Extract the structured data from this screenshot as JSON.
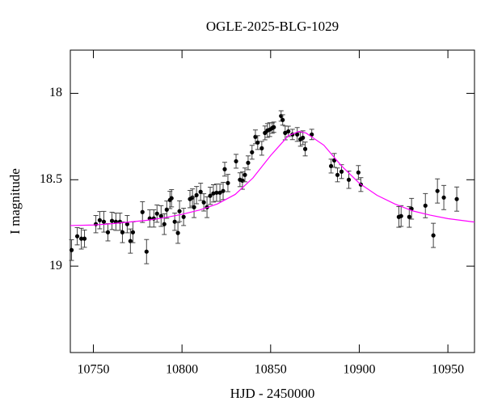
{
  "chart_data": {
    "type": "scatter",
    "title": "OGLE-2025-BLG-1029",
    "xlabel": "HJD - 2450000",
    "ylabel": "I magnitude",
    "xlim": [
      10737,
      10965
    ],
    "ylim": [
      19.5,
      17.75
    ],
    "xticks": [
      10750,
      10800,
      10850,
      10900,
      10950
    ],
    "yticks": [
      18,
      18.5,
      19
    ],
    "series": [
      {
        "type": "scatter",
        "color": "#000000",
        "x": [
          10737.7,
          10740.9,
          10743.2,
          10745,
          10751.4,
          10753.6,
          10755.9,
          10758.2,
          10760.5,
          10762.7,
          10765,
          10766.4,
          10769.1,
          10770.9,
          10772.3,
          10777.7,
          10780,
          10781.8,
          10784.1,
          10785.9,
          10788.2,
          10790,
          10791.4,
          10793.2,
          10794.1,
          10795.9,
          10797.7,
          10798.6,
          10800.9,
          10804.5,
          10805.9,
          10806.8,
          10808.2,
          10810.5,
          10812.3,
          10814.1,
          10815.9,
          10817.7,
          10819.5,
          10821.4,
          10823.2,
          10824.1,
          10825.9,
          10830.5,
          10832.7,
          10834.1,
          10835.5,
          10837.3,
          10839.5,
          10841.4,
          10842.7,
          10845,
          10846.8,
          10848.2,
          10849.5,
          10850.9,
          10851.8,
          10855.9,
          10856.8,
          10858.2,
          10860,
          10862.3,
          10865,
          10866.8,
          10868.2,
          10869.5,
          10873.2,
          10884.1,
          10885.9,
          10887.7,
          10890,
          10894.1,
          10899.5,
          10900.9,
          10922.3,
          10923.6,
          10928.2,
          10929.5,
          10937.3,
          10941.8,
          10944.1,
          10947.7,
          10955
        ],
        "values": [
          18.907,
          18.827,
          18.841,
          18.841,
          18.757,
          18.734,
          18.743,
          18.804,
          18.738,
          18.743,
          18.743,
          18.804,
          18.757,
          18.855,
          18.804,
          18.687,
          18.916,
          18.724,
          18.724,
          18.696,
          18.71,
          18.757,
          18.673,
          18.617,
          18.607,
          18.743,
          18.808,
          18.682,
          18.715,
          18.612,
          18.603,
          18.659,
          18.589,
          18.57,
          18.631,
          18.659,
          18.593,
          18.579,
          18.575,
          18.575,
          18.565,
          18.439,
          18.519,
          18.393,
          18.5,
          18.505,
          18.472,
          18.402,
          18.341,
          18.252,
          18.285,
          18.318,
          18.229,
          18.215,
          18.21,
          18.201,
          18.196,
          18.131,
          18.154,
          18.229,
          18.22,
          18.238,
          18.238,
          18.266,
          18.257,
          18.322,
          18.238,
          18.421,
          18.388,
          18.472,
          18.453,
          18.5,
          18.458,
          18.528,
          18.715,
          18.71,
          18.715,
          18.668,
          18.65,
          18.822,
          18.565,
          18.603,
          18.612
        ],
        "errors": [
          0.06,
          0.05,
          0.06,
          0.05,
          0.05,
          0.05,
          0.06,
          0.05,
          0.05,
          0.05,
          0.05,
          0.06,
          0.05,
          0.07,
          0.06,
          0.06,
          0.07,
          0.05,
          0.05,
          0.05,
          0.06,
          0.06,
          0.05,
          0.05,
          0.05,
          0.05,
          0.06,
          0.06,
          0.05,
          0.05,
          0.05,
          0.06,
          0.05,
          0.05,
          0.05,
          0.06,
          0.05,
          0.05,
          0.05,
          0.05,
          0.05,
          0.04,
          0.05,
          0.04,
          0.04,
          0.05,
          0.04,
          0.04,
          0.04,
          0.04,
          0.04,
          0.04,
          0.04,
          0.04,
          0.04,
          0.03,
          0.03,
          0.03,
          0.03,
          0.04,
          0.03,
          0.03,
          0.04,
          0.04,
          0.04,
          0.04,
          0.03,
          0.04,
          0.04,
          0.04,
          0.04,
          0.05,
          0.04,
          0.04,
          0.06,
          0.06,
          0.06,
          0.06,
          0.07,
          0.07,
          0.07,
          0.07,
          0.07
        ]
      },
      {
        "type": "line",
        "color": "#ff00ff",
        "x": [
          10737,
          10750,
          10760,
          10770,
          10780,
          10790,
          10800,
          10810,
          10820,
          10830,
          10840,
          10850,
          10860,
          10866,
          10870,
          10880,
          10890,
          10900,
          10910,
          10920,
          10930,
          10940,
          10950,
          10965
        ],
        "values": [
          18.765,
          18.762,
          18.755,
          18.745,
          18.735,
          18.72,
          18.7,
          18.675,
          18.64,
          18.585,
          18.49,
          18.36,
          18.245,
          18.22,
          18.23,
          18.3,
          18.42,
          18.52,
          18.59,
          18.64,
          18.68,
          18.705,
          18.725,
          18.745
        ]
      }
    ]
  }
}
